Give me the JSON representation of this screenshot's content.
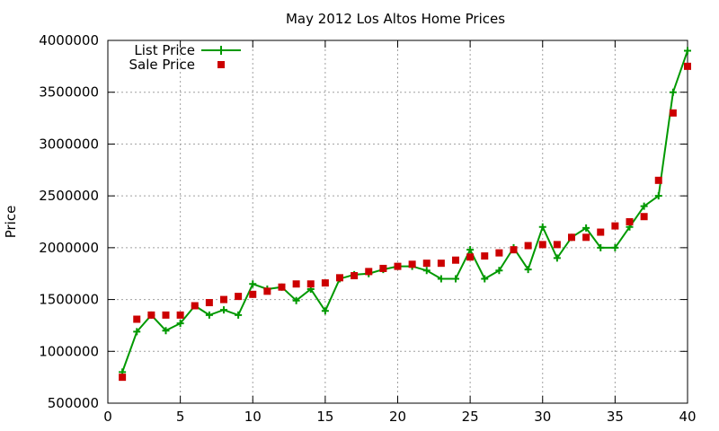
{
  "chart_data": {
    "type": "line",
    "title": "May 2012 Los Altos Home Prices",
    "xlabel": "",
    "ylabel": "Price",
    "xlim": [
      0,
      40
    ],
    "ylim": [
      500000,
      4000000
    ],
    "x_ticks": [
      0,
      5,
      10,
      15,
      20,
      25,
      30,
      35,
      40
    ],
    "y_ticks": [
      500000,
      1000000,
      1500000,
      2000000,
      2500000,
      3000000,
      3500000,
      4000000
    ],
    "grid": true,
    "legend_position": "top-left",
    "x": [
      1,
      2,
      3,
      4,
      5,
      6,
      7,
      8,
      9,
      10,
      11,
      12,
      13,
      14,
      15,
      16,
      17,
      18,
      19,
      20,
      21,
      22,
      23,
      24,
      25,
      26,
      27,
      28,
      29,
      30,
      31,
      32,
      33,
      34,
      35,
      36,
      37,
      38,
      39,
      40
    ],
    "series": [
      {
        "name": "List Price",
        "style": "linespoints",
        "color": "#009900",
        "marker": "plus",
        "values": [
          800000,
          1190000,
          1350000,
          1200000,
          1270000,
          1440000,
          1350000,
          1400000,
          1350000,
          1650000,
          1600000,
          1620000,
          1490000,
          1600000,
          1390000,
          1700000,
          1740000,
          1750000,
          1790000,
          1820000,
          1820000,
          1780000,
          1700000,
          1700000,
          1980000,
          1700000,
          1780000,
          2000000,
          1790000,
          2200000,
          1900000,
          2100000,
          2190000,
          2000000,
          2000000,
          2200000,
          2400000,
          2500000,
          3500000,
          3900000
        ]
      },
      {
        "name": "Sale Price",
        "style": "points",
        "color": "#cc0000",
        "marker": "square",
        "values": [
          750000,
          1310000,
          1350000,
          1350000,
          1350000,
          1440000,
          1470000,
          1500000,
          1530000,
          1550000,
          1580000,
          1620000,
          1650000,
          1650000,
          1660000,
          1710000,
          1730000,
          1770000,
          1800000,
          1820000,
          1840000,
          1850000,
          1850000,
          1880000,
          1910000,
          1920000,
          1950000,
          1980000,
          2020000,
          2030000,
          2030000,
          2100000,
          2100000,
          2150000,
          2210000,
          2250000,
          2300000,
          2650000,
          3300000,
          3750000
        ]
      }
    ]
  }
}
